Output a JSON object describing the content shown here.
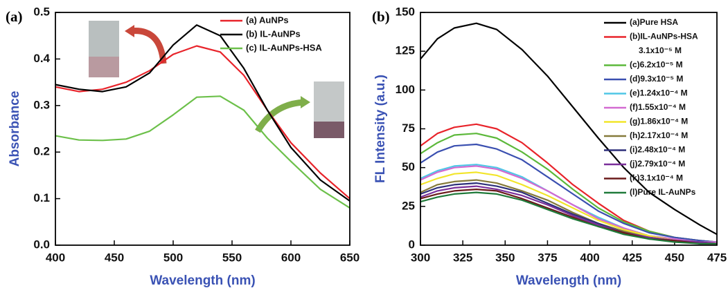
{
  "chart_data": [
    {
      "type": "line",
      "panel_label": "(a)",
      "xlabel": "Wavelength (nm)",
      "ylabel": "Absorbance",
      "x": [
        400,
        420,
        440,
        460,
        480,
        500,
        520,
        540,
        560,
        580,
        600,
        625,
        650
      ],
      "xlim": [
        400,
        650
      ],
      "xticks": [
        400,
        450,
        500,
        550,
        600,
        650
      ],
      "ylim": [
        0,
        0.5
      ],
      "yticks": [
        {
          "value": 0,
          "label": "0.0"
        },
        0.1,
        0.2,
        0.3,
        0.4,
        0.5
      ],
      "legend": "upper right",
      "series": [
        {
          "name": "(a) AuNPs",
          "color": "#e8232a",
          "values": [
            0.34,
            0.33,
            0.335,
            0.35,
            0.375,
            0.41,
            0.428,
            0.415,
            0.365,
            0.29,
            0.22,
            0.155,
            0.1
          ]
        },
        {
          "name": "(b) IL-AuNPs",
          "color": "#000000",
          "values": [
            0.345,
            0.335,
            0.33,
            0.34,
            0.37,
            0.43,
            0.473,
            0.45,
            0.38,
            0.29,
            0.21,
            0.14,
            0.095
          ]
        },
        {
          "name": "(c) IL-AuNPs-HSA",
          "color": "#6cc04a",
          "values": [
            0.235,
            0.226,
            0.225,
            0.228,
            0.245,
            0.28,
            0.318,
            0.32,
            0.29,
            0.23,
            0.18,
            0.12,
            0.08
          ]
        }
      ]
    },
    {
      "type": "line",
      "panel_label": "(b)",
      "xlabel": "Wavelength (nm)",
      "ylabel": "FL Intensity (a.u.)",
      "x": [
        300,
        310,
        320,
        333,
        345,
        360,
        375,
        390,
        405,
        420,
        435,
        450,
        465,
        475
      ],
      "xlim": [
        300,
        475
      ],
      "xticks": [
        300,
        325,
        350,
        375,
        400,
        425,
        450,
        475
      ],
      "ylim": [
        0,
        150
      ],
      "yticks": [
        0,
        25,
        50,
        75,
        100,
        125,
        150
      ],
      "legend": "upper right",
      "series": [
        {
          "name": "(a)Pure HSA",
          "color": "#000000",
          "values": [
            120,
            133,
            140,
            143,
            139,
            126,
            109,
            89,
            69,
            50,
            34,
            23,
            13,
            7
          ]
        },
        {
          "name": "(b)IL-AuNPs-HSA",
          "concentration": "3.1x10⁻⁵ M",
          "color": "#e8232a",
          "values": [
            64,
            72,
            76,
            78,
            75,
            66,
            53,
            39,
            27,
            16,
            9,
            5,
            3,
            2
          ]
        },
        {
          "name": "(c)6.2x10⁻⁵ M",
          "color": "#5cb83a",
          "values": [
            59,
            66,
            71,
            72,
            69,
            60,
            49,
            36,
            24,
            15,
            9,
            5,
            3,
            2
          ]
        },
        {
          "name": "(d)9.3x10⁻⁵ M",
          "color": "#3a4fb0",
          "values": [
            53,
            60,
            64,
            65,
            62,
            55,
            44,
            33,
            22,
            14,
            8,
            5,
            3,
            2
          ]
        },
        {
          "name": "(e)1.24x10⁻⁴ M",
          "color": "#4fc7e6",
          "values": [
            43,
            48,
            51,
            52,
            50,
            44,
            35,
            26,
            18,
            11,
            6,
            4,
            2,
            2
          ]
        },
        {
          "name": "(f)1.55x10⁻⁴ M",
          "color": "#d36ad1",
          "values": [
            42,
            47,
            50,
            51,
            49,
            43,
            35,
            26,
            17,
            11,
            6,
            4,
            2,
            2
          ]
        },
        {
          "name": "(g)1.86x10⁻⁴ M",
          "color": "#f2e52a",
          "values": [
            39,
            43,
            46,
            47,
            45,
            39,
            32,
            24,
            16,
            10,
            6,
            3,
            2,
            1
          ]
        },
        {
          "name": "(h)2.17x10⁻⁴ M",
          "color": "#857a3a",
          "values": [
            34,
            39,
            41,
            42,
            40,
            35,
            29,
            21,
            14,
            9,
            5,
            3,
            2,
            1
          ]
        },
        {
          "name": "(i)2.48x10⁻⁴ M",
          "color": "#2d2f7a",
          "values": [
            33,
            37,
            39,
            40,
            38,
            34,
            27,
            20,
            14,
            8,
            5,
            3,
            2,
            1
          ]
        },
        {
          "name": "(j)2.79x10⁻⁴ M",
          "color": "#7a2f9a",
          "values": [
            31,
            35,
            37,
            38,
            36,
            32,
            26,
            19,
            13,
            8,
            5,
            3,
            2,
            1
          ]
        },
        {
          "name": "(k)3.1x10⁻⁴ M",
          "color": "#6a1a1a",
          "values": [
            30,
            33,
            35,
            36,
            35,
            30,
            24,
            18,
            12,
            8,
            4,
            3,
            1,
            1
          ]
        },
        {
          "name": "(l)Pure IL-AuNPs",
          "color": "#1f7a3a",
          "values": [
            28,
            31,
            33,
            34,
            33,
            29,
            23,
            17,
            12,
            7,
            4,
            2,
            1,
            1
          ]
        }
      ]
    }
  ]
}
